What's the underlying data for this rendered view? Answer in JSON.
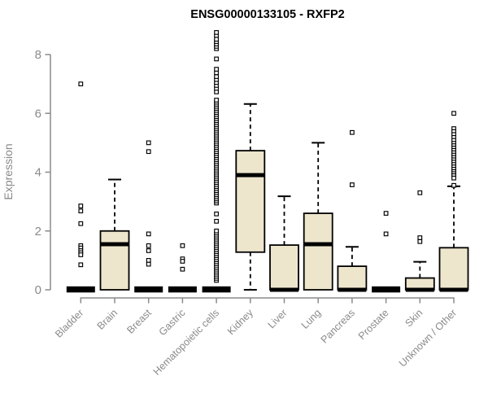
{
  "chart_data": {
    "type": "boxplot",
    "title": "ENSG00000133105 - RXFP2",
    "ylabel": "Expression",
    "xlabel": "",
    "ylim": [
      0,
      8.8
    ],
    "yticks": [
      0,
      2,
      4,
      6,
      8
    ],
    "grid": false,
    "legend": null,
    "colors": {
      "box_fill": "#EDE6CD",
      "box_stroke": "#000000",
      "median": "#000000",
      "outlier_fill": "#FFFFFF",
      "axis": "#8A8A8A",
      "title": "#000000"
    },
    "categories": [
      "Bladder",
      "Brain",
      "Breast",
      "Gastric",
      "Hematopoietic cells",
      "Kidney",
      "Liver",
      "Lung",
      "Pancreas",
      "Prostate",
      "Skin",
      "Unknown / Other"
    ],
    "series": [
      {
        "category": "Bladder",
        "q1": 0,
        "median": 0,
        "q3": 0,
        "whisker_low": 0,
        "whisker_high": 0,
        "collapsed": true,
        "outliers": [
          7.0,
          2.85,
          2.68,
          2.25,
          1.5,
          1.42,
          1.33,
          1.26,
          1.19,
          0.85
        ]
      },
      {
        "category": "Brain",
        "q1": 0,
        "median": 1.55,
        "q3": 2.0,
        "whisker_low": 0,
        "whisker_high": 3.75,
        "collapsed": false,
        "outliers": []
      },
      {
        "category": "Breast",
        "q1": 0,
        "median": 0,
        "q3": 0,
        "whisker_low": 0,
        "whisker_high": 0,
        "collapsed": true,
        "outliers": [
          5.0,
          4.7,
          1.9,
          1.5,
          1.33,
          1.0,
          0.87
        ]
      },
      {
        "category": "Gastric",
        "q1": 0,
        "median": 0,
        "q3": 0,
        "whisker_low": 0,
        "whisker_high": 0,
        "collapsed": true,
        "outliers": [
          1.5,
          1.05,
          0.97,
          0.7
        ]
      },
      {
        "category": "Hematopoietic cells",
        "q1": 0,
        "median": 0,
        "q3": 0,
        "whisker_low": 0,
        "whisker_high": 0,
        "collapsed": true,
        "outliers": [
          0.32,
          0.39,
          0.46,
          0.53,
          0.6,
          0.67,
          0.74,
          0.81,
          0.88,
          0.95,
          1.02,
          1.09,
          1.16,
          1.23,
          1.3,
          1.37,
          1.44,
          1.51,
          1.58,
          1.65,
          1.72,
          1.79,
          1.86,
          1.93,
          2.0,
          2.33,
          2.58,
          2.95,
          3.02,
          3.09,
          3.16,
          3.23,
          3.3,
          3.37,
          3.44,
          3.51,
          3.58,
          3.65,
          3.72,
          3.79,
          3.86,
          3.93,
          4.0,
          4.07,
          4.14,
          4.21,
          4.28,
          4.35,
          4.42,
          4.49,
          4.56,
          4.63,
          4.7,
          4.77,
          4.84,
          4.91,
          4.98,
          5.05,
          5.12,
          5.19,
          5.26,
          5.33,
          5.4,
          5.47,
          5.54,
          5.61,
          5.68,
          5.75,
          5.82,
          5.89,
          5.96,
          6.03,
          6.1,
          6.17,
          6.24,
          6.31,
          6.38,
          6.45,
          6.73,
          6.85,
          6.95,
          7.05,
          7.15,
          7.25,
          7.38,
          7.5,
          7.85,
          8.2,
          8.28,
          8.36,
          8.44,
          8.52,
          8.65,
          8.75
        ]
      },
      {
        "category": "Kidney",
        "q1": 1.28,
        "median": 3.9,
        "q3": 4.73,
        "whisker_low": 0,
        "whisker_high": 6.32,
        "collapsed": false,
        "outliers": []
      },
      {
        "category": "Liver",
        "q1": 0,
        "median": 0,
        "q3": 1.52,
        "whisker_low": 0,
        "whisker_high": 3.18,
        "collapsed": false,
        "outliers": []
      },
      {
        "category": "Lung",
        "q1": 0,
        "median": 1.55,
        "q3": 2.6,
        "whisker_low": 0,
        "whisker_high": 5.0,
        "collapsed": false,
        "outliers": []
      },
      {
        "category": "Pancreas",
        "q1": 0,
        "median": 0,
        "q3": 0.8,
        "whisker_low": 0,
        "whisker_high": 1.46,
        "collapsed": false,
        "outliers": [
          5.35,
          3.57
        ]
      },
      {
        "category": "Prostate",
        "q1": 0,
        "median": 0,
        "q3": 0,
        "whisker_low": 0,
        "whisker_high": 0,
        "collapsed": true,
        "outliers": [
          2.6,
          1.9
        ]
      },
      {
        "category": "Skin",
        "q1": 0,
        "median": 0,
        "q3": 0.4,
        "whisker_low": 0,
        "whisker_high": 0.95,
        "collapsed": false,
        "outliers": [
          3.3,
          1.77,
          1.64
        ]
      },
      {
        "category": "Unknown / Other",
        "q1": 0,
        "median": 0,
        "q3": 1.43,
        "whisker_low": 0,
        "whisker_high": 3.52,
        "collapsed": false,
        "outliers": [
          6.0,
          5.48,
          5.38,
          5.28,
          5.18,
          5.08,
          4.98,
          4.9,
          4.82,
          4.74,
          4.66,
          4.58,
          4.5,
          4.42,
          4.34,
          4.26,
          4.18,
          4.1,
          4.02,
          3.95,
          3.88,
          3.8,
          3.55
        ]
      }
    ]
  }
}
